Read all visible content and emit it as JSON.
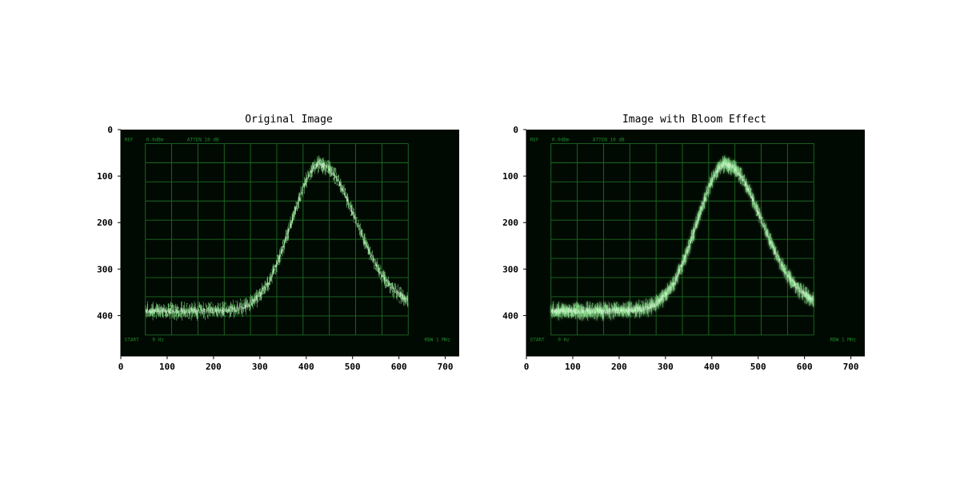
{
  "colors": {
    "scope_bg": "#010a02",
    "grid": "#1c6b22",
    "trace": "#8ee68f",
    "trace_bright": "#d9ffd9",
    "scope_text": "#1f8a2a",
    "figure_bg": "#ffffff"
  },
  "panels": [
    {
      "title": "Original Image"
    },
    {
      "title": "Image with Bloom Effect"
    }
  ],
  "scope_labels": {
    "ref": "REF",
    "ref_value": "0.0dBm",
    "atten": "ATTEN 10 dB",
    "start": "START",
    "start_value": "0 Hz",
    "rbw": "RBW 1 MHz"
  },
  "chart_data": [
    {
      "type": "image",
      "title": "Original Image",
      "xlim": [
        0,
        730
      ],
      "ylim": [
        487,
        0
      ],
      "xticks": [
        0,
        100,
        200,
        300,
        400,
        500,
        600,
        700
      ],
      "yticks": [
        0,
        100,
        200,
        300,
        400
      ],
      "scope_grid": {
        "x_start": 53,
        "x_end": 620,
        "x_divisions": 10,
        "y_start": 30,
        "y_end": 442,
        "y_divisions": 10
      },
      "trace": {
        "x_start": 53,
        "x_end": 620,
        "baseline_y": 390,
        "peak_x": 430,
        "peak_y": 75,
        "end_y": 382,
        "noise_amplitude": 22
      }
    },
    {
      "type": "image",
      "title": "Image with Bloom Effect",
      "xlim": [
        0,
        730
      ],
      "ylim": [
        487,
        0
      ],
      "xticks": [
        0,
        100,
        200,
        300,
        400,
        500,
        600,
        700
      ],
      "yticks": [
        0,
        100,
        200,
        300,
        400
      ],
      "scope_grid": {
        "x_start": 53,
        "x_end": 620,
        "x_divisions": 10,
        "y_start": 30,
        "y_end": 442,
        "y_divisions": 10
      },
      "trace": {
        "x_start": 53,
        "x_end": 620,
        "baseline_y": 390,
        "peak_x": 430,
        "peak_y": 75,
        "end_y": 382,
        "noise_amplitude": 22
      }
    }
  ]
}
